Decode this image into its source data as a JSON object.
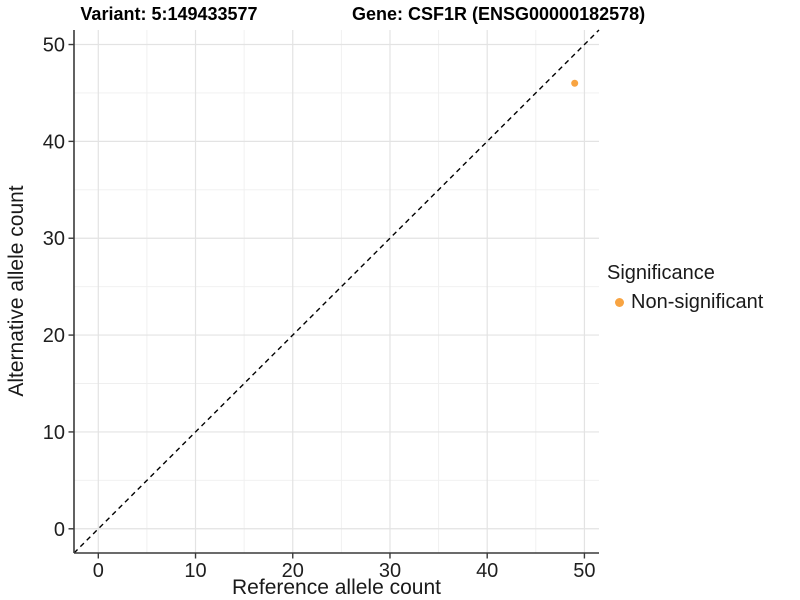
{
  "chart_data": {
    "type": "scatter",
    "title_left": "Variant: 5:149433577",
    "title_right": "Gene: CSF1R (ENSG00000182578)",
    "xlabel": "Reference allele count",
    "ylabel": "Alternative allele count",
    "xlim": [
      -2.5,
      51.5
    ],
    "ylim": [
      -2.5,
      51.5
    ],
    "xticks": [
      0,
      10,
      20,
      30,
      40,
      50
    ],
    "yticks": [
      0,
      10,
      20,
      30,
      40,
      50
    ],
    "x_minor_ticks": [
      5,
      15,
      25,
      35,
      45
    ],
    "y_minor_ticks": [
      5,
      15,
      25,
      35,
      45
    ],
    "grid": true,
    "legend_position": "right",
    "legend_title": "Significance",
    "reference_line": {
      "kind": "identity y=x",
      "style": "dashed",
      "color": "#000000"
    },
    "series": [
      {
        "name": "Non-significant",
        "color": "#F8A442",
        "points": [
          {
            "x": 49,
            "y": 46
          }
        ]
      }
    ]
  },
  "colors": {
    "background": "#FFFFFF",
    "axis_line": "#3a3a3a",
    "grid_major": "#E3E3E3",
    "grid_minor": "#EFEFEF",
    "text": "#1f1f1f",
    "point_orange": "#F8A442"
  }
}
